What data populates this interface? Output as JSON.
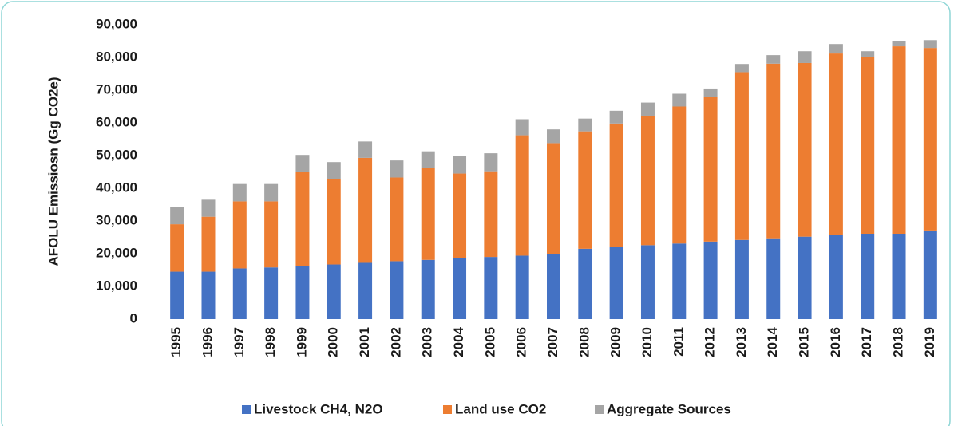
{
  "chart_data": {
    "type": "stacked_bar",
    "y_axis_label": "AFOLU  Emissiosn (Gg CO2e)",
    "categories": [
      "1995",
      "1996",
      "1997",
      "1998",
      "1999",
      "2000",
      "2001",
      "2002",
      "2003",
      "2004",
      "2005",
      "2006",
      "2007",
      "2008",
      "2009",
      "2010",
      "2011",
      "2012",
      "2013",
      "2014",
      "2015",
      "2016",
      "2017",
      "2018",
      "2019"
    ],
    "series": [
      {
        "name": "Livestock CH4, N2O",
        "color": "#4472c4",
        "values": [
          14500,
          14500,
          15500,
          15800,
          16200,
          16700,
          17200,
          17700,
          18100,
          18600,
          19000,
          19400,
          19900,
          21500,
          22000,
          22600,
          23100,
          23700,
          24200,
          24700,
          25200,
          25700,
          26100,
          26100,
          27100
        ]
      },
      {
        "name": "Land use CO2",
        "color": "#ed7d31",
        "values": [
          14500,
          16800,
          20500,
          20200,
          28800,
          26100,
          32100,
          25600,
          28100,
          25900,
          26200,
          36800,
          33900,
          35900,
          37800,
          39600,
          41900,
          44200,
          51300,
          53400,
          53100,
          55500,
          53900,
          57300,
          55800
        ]
      },
      {
        "name": "Aggregate Sources",
        "color": "#a5a5a5",
        "values": [
          5200,
          5200,
          5300,
          5300,
          5200,
          5200,
          5000,
          5200,
          5100,
          5500,
          5500,
          4900,
          4200,
          3900,
          3900,
          4000,
          3900,
          2600,
          2500,
          2600,
          3600,
          2900,
          1900,
          1600,
          2400
        ]
      }
    ],
    "ylim": [
      0,
      90000
    ],
    "yticks": [
      0,
      {
        "value": 10000,
        "label": "10,000"
      },
      {
        "value": 20000,
        "label": "20,000"
      },
      {
        "value": 30000,
        "label": "30,000"
      },
      {
        "value": 40000,
        "label": "40,000"
      },
      {
        "value": 50000,
        "label": "50,000"
      },
      {
        "value": 60000,
        "label": "60,000"
      },
      {
        "value": 70000,
        "label": "70,000"
      },
      {
        "value": 80000,
        "label": "80,000"
      },
      {
        "value": 90000,
        "label": "90,000"
      }
    ],
    "legend": "bottom"
  }
}
